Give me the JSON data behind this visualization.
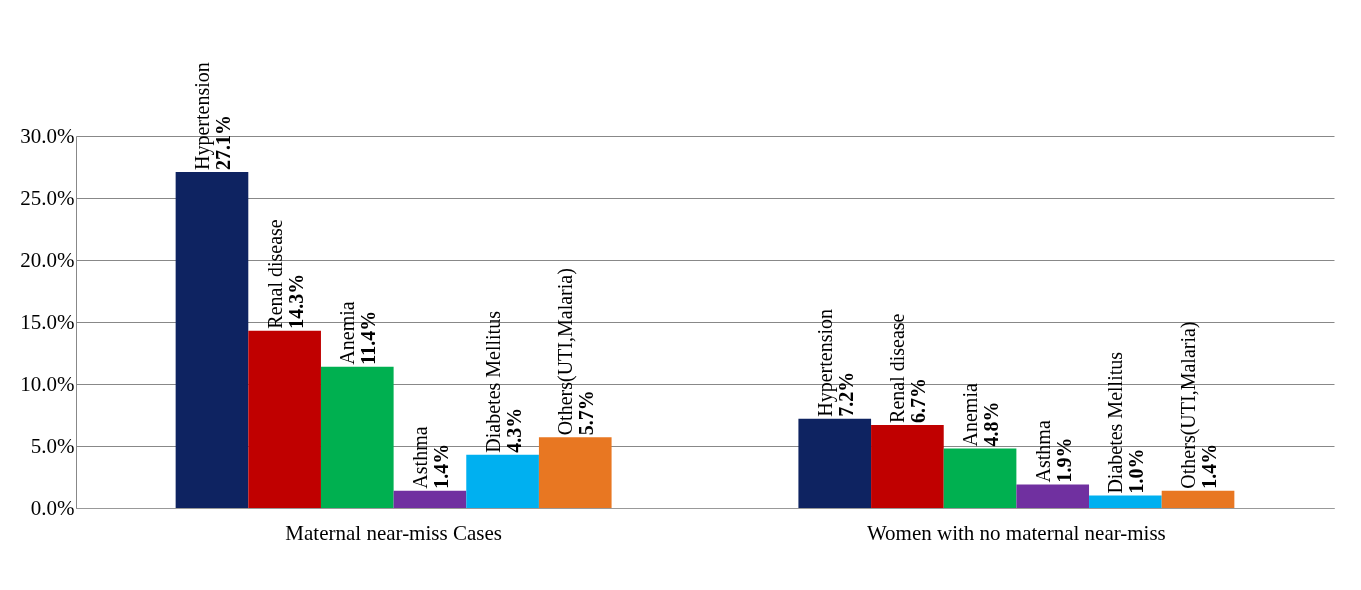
{
  "chart_data": {
    "type": "bar",
    "categories": [
      "Maternal near-miss Cases",
      "Women with no maternal near-miss"
    ],
    "series": [
      {
        "name": "Hypertension",
        "color": "#0e2361",
        "values": [
          27.1,
          7.2
        ],
        "value_labels": [
          "27.1%",
          "7.2%"
        ]
      },
      {
        "name": "Renal disease",
        "color": "#c00000",
        "values": [
          14.3,
          6.7
        ],
        "value_labels": [
          "14.3%",
          "6.7%"
        ]
      },
      {
        "name": "Anemia",
        "color": "#00b050",
        "values": [
          11.4,
          4.8
        ],
        "value_labels": [
          "11.4%",
          "4.8%"
        ]
      },
      {
        "name": "Asthma",
        "color": "#7030a0",
        "values": [
          1.4,
          1.9
        ],
        "value_labels": [
          "1.4%",
          "1.9%"
        ]
      },
      {
        "name": "Diabetes Mellitus",
        "color": "#00b0f0",
        "values": [
          4.3,
          1.0
        ],
        "value_labels": [
          "4.3%",
          "1.0%"
        ]
      },
      {
        "name": "Others(UTI,Malaria)",
        "color": "#e87722",
        "values": [
          5.7,
          1.4
        ],
        "value_labels": [
          "5.7%",
          "1.4%"
        ]
      }
    ],
    "ylim": [
      0,
      30
    ],
    "yticks": [
      {
        "value": 0,
        "label": "0.0%"
      },
      {
        "value": 5,
        "label": "5.0%"
      },
      {
        "value": 10,
        "label": "10.0%"
      },
      {
        "value": 15,
        "label": "15.0%"
      },
      {
        "value": 20,
        "label": "20.0%"
      },
      {
        "value": 25,
        "label": "25.0%"
      },
      {
        "value": 30,
        "label": "30.0%"
      }
    ],
    "grid": "y",
    "legend": false
  }
}
